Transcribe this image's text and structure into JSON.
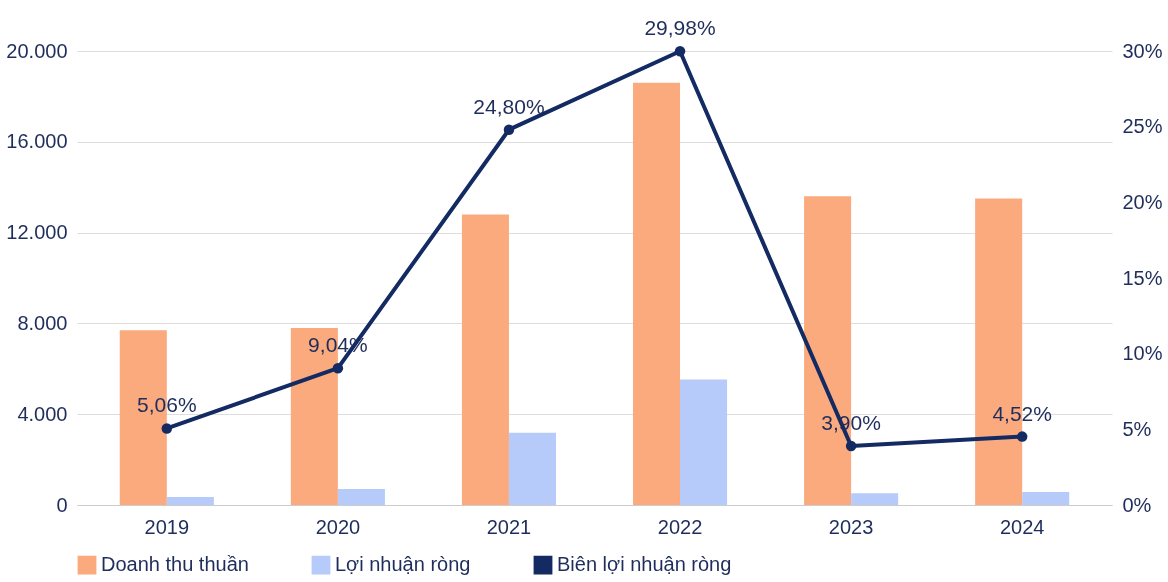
{
  "chart_data": {
    "type": "bar",
    "categories": [
      "2019",
      "2020",
      "2021",
      "2022",
      "2023",
      "2024"
    ],
    "series": [
      {
        "name": "Doanh thu thuần",
        "type": "bar",
        "color": "#fbaa7d",
        "values": [
          7700,
          7800,
          12800,
          18600,
          13600,
          13500
        ]
      },
      {
        "name": "Lợi nhuận ròng",
        "type": "bar",
        "color": "#b6cbfa",
        "values": [
          350,
          700,
          3180,
          5530,
          520,
          570
        ]
      },
      {
        "name": "Biên lợi nhuận ròng",
        "type": "line",
        "axis": "y2",
        "color": "#132a63",
        "values": [
          5.06,
          9.04,
          24.8,
          29.98,
          3.9,
          4.52
        ],
        "value_labels": [
          "5,06%",
          "9,04%",
          "24,80%",
          "29,98%",
          "3,90%",
          "4,52%"
        ]
      }
    ],
    "ylim": [
      0,
      20000
    ],
    "yticks": [
      {
        "value": 0,
        "label": "0"
      },
      {
        "value": 4000,
        "label": "4.000"
      },
      {
        "value": 8000,
        "label": "8.000"
      },
      {
        "value": 12000,
        "label": "12.000"
      },
      {
        "value": 16000,
        "label": "16.000"
      },
      {
        "value": 20000,
        "label": "20.000"
      }
    ],
    "y2lim": [
      0,
      30
    ],
    "y2ticks": [
      {
        "value": 0,
        "label": "0%"
      },
      {
        "value": 5,
        "label": "5%"
      },
      {
        "value": 10,
        "label": "10%"
      },
      {
        "value": 15,
        "label": "15%"
      },
      {
        "value": 20,
        "label": "20%"
      },
      {
        "value": 25,
        "label": "25%"
      },
      {
        "value": 30,
        "label": "30%"
      }
    ],
    "grid": "y",
    "legend": "bottom",
    "marker": "circle",
    "line_style": "solid"
  }
}
